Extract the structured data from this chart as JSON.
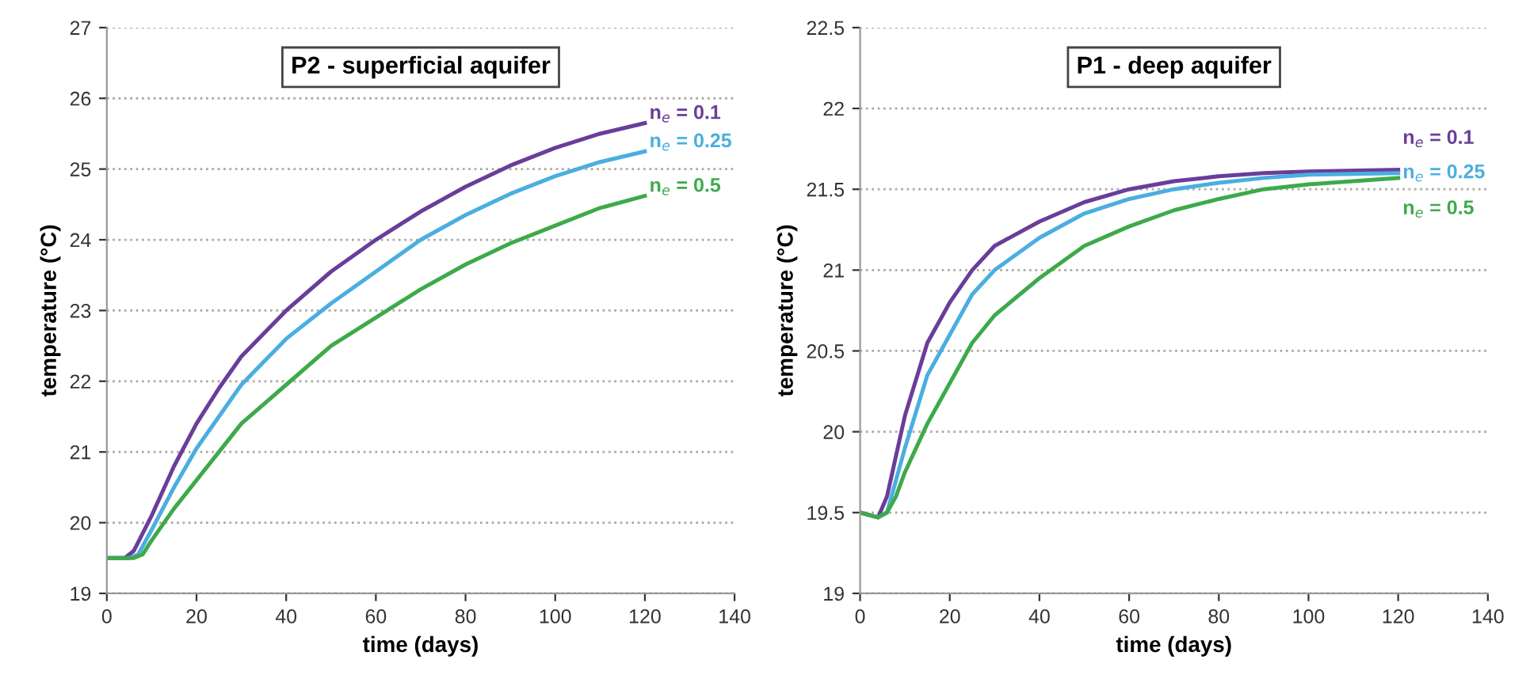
{
  "chart_data": [
    {
      "type": "line",
      "title": "P2 - superficial aquifer",
      "xlabel": "time (days)",
      "ylabel": "temperature (°C)",
      "xlim": [
        0,
        140
      ],
      "xticks": [
        0,
        20,
        40,
        60,
        80,
        100,
        120,
        140
      ],
      "ylim": [
        19,
        27
      ],
      "yticks": [
        19,
        20,
        21,
        22,
        23,
        24,
        25,
        26,
        27
      ],
      "grid": "y",
      "legend": false,
      "marker": "none",
      "line_style": "solid",
      "series": [
        {
          "name": "n$_{e}$ = 0.1",
          "color": "#6a3d9a",
          "x": [
            0,
            4,
            6,
            10,
            15,
            20,
            25,
            30,
            40,
            50,
            60,
            70,
            80,
            90,
            100,
            110,
            120
          ],
          "values": [
            19.5,
            19.5,
            19.6,
            20.1,
            20.8,
            21.4,
            21.9,
            22.35,
            23.0,
            23.55,
            24.0,
            24.4,
            24.75,
            25.05,
            25.3,
            25.5,
            25.65
          ]
        },
        {
          "name": "n$_{e}$ = 0.25",
          "color": "#4aaee0",
          "x": [
            0,
            5,
            7,
            10,
            15,
            20,
            25,
            30,
            40,
            50,
            60,
            70,
            80,
            90,
            100,
            110,
            120
          ],
          "values": [
            19.5,
            19.5,
            19.55,
            19.9,
            20.5,
            21.05,
            21.5,
            21.95,
            22.6,
            23.1,
            23.55,
            24.0,
            24.35,
            24.65,
            24.9,
            25.1,
            25.25
          ]
        },
        {
          "name": "n$_{e}$ = 0.5",
          "color": "#3daa4a",
          "x": [
            0,
            6,
            8,
            10,
            15,
            20,
            25,
            30,
            40,
            50,
            60,
            70,
            80,
            90,
            100,
            110,
            120
          ],
          "values": [
            19.5,
            19.5,
            19.55,
            19.75,
            20.2,
            20.6,
            21.0,
            21.4,
            21.95,
            22.5,
            22.9,
            23.3,
            23.65,
            23.95,
            24.2,
            24.45,
            24.62
          ]
        }
      ]
    },
    {
      "type": "line",
      "title": "P1 - deep aquifer",
      "xlabel": "time (days)",
      "ylabel": "temperature (°C)",
      "xlim": [
        0,
        140
      ],
      "xticks": [
        0,
        20,
        40,
        60,
        80,
        100,
        120,
        140
      ],
      "ylim": [
        19,
        22.5
      ],
      "yticks": [
        19,
        19.5,
        20,
        20.5,
        21,
        21.5,
        22,
        22.5
      ],
      "grid": "y",
      "legend": false,
      "marker": "none",
      "line_style": "solid",
      "series": [
        {
          "name": "n$_{e}$ = 0.1",
          "color": "#6a3d9a",
          "x": [
            0,
            4,
            6,
            8,
            10,
            15,
            20,
            25,
            30,
            40,
            50,
            60,
            70,
            80,
            90,
            100,
            120
          ],
          "values": [
            19.5,
            19.47,
            19.6,
            19.85,
            20.1,
            20.55,
            20.8,
            21.0,
            21.15,
            21.3,
            21.42,
            21.5,
            21.55,
            21.58,
            21.6,
            21.61,
            21.62
          ]
        },
        {
          "name": "n$_{e}$ = 0.25",
          "color": "#4aaee0",
          "x": [
            0,
            4,
            6,
            8,
            10,
            15,
            20,
            25,
            30,
            40,
            50,
            60,
            70,
            80,
            90,
            100,
            120
          ],
          "values": [
            19.5,
            19.47,
            19.5,
            19.7,
            19.9,
            20.35,
            20.6,
            20.85,
            21.0,
            21.2,
            21.35,
            21.44,
            21.5,
            21.54,
            21.57,
            21.59,
            21.6
          ]
        },
        {
          "name": "n$_{e}$ = 0.5",
          "color": "#3daa4a",
          "x": [
            0,
            4,
            6,
            8,
            10,
            15,
            20,
            25,
            30,
            40,
            50,
            60,
            70,
            80,
            90,
            100,
            120
          ],
          "values": [
            19.5,
            19.47,
            19.5,
            19.6,
            19.75,
            20.05,
            20.3,
            20.55,
            20.72,
            20.95,
            21.15,
            21.27,
            21.37,
            21.44,
            21.5,
            21.53,
            21.57
          ]
        }
      ]
    }
  ]
}
